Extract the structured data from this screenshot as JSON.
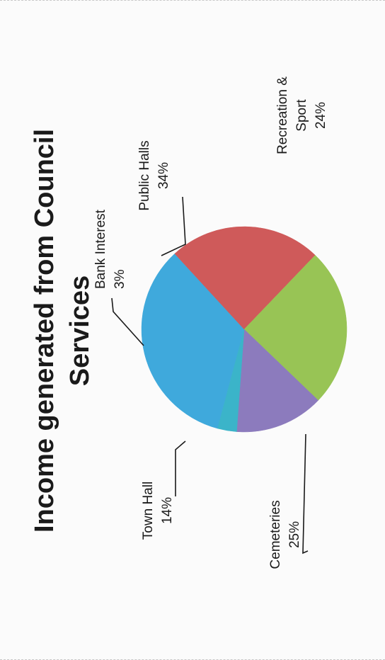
{
  "chart_data": {
    "type": "pie",
    "title": "Income generated from Council Services",
    "title_lines": [
      "Income generated from Council",
      "Services"
    ],
    "slices": [
      {
        "name": "Public Halls",
        "value": 34,
        "label_lines": [
          "Public Halls",
          "34%"
        ],
        "color": "#3fa9dc"
      },
      {
        "name": "Recreation & Sport",
        "value": 24,
        "label_lines": [
          "Recreation &",
          "Sport",
          "24%"
        ],
        "color": "#cf5a5a"
      },
      {
        "name": "Cemeteries",
        "value": 25,
        "label_lines": [
          "Cemeteries",
          "25%"
        ],
        "color": "#98c455"
      },
      {
        "name": "Town Hall",
        "value": 14,
        "label_lines": [
          "Town Hall",
          "14%"
        ],
        "color": "#8c7bbd"
      },
      {
        "name": "Bank Interest",
        "value": 3,
        "label_lines": [
          "Bank Interest",
          "3%"
        ],
        "color": "#3bb4c9"
      }
    ],
    "legend": "none"
  }
}
